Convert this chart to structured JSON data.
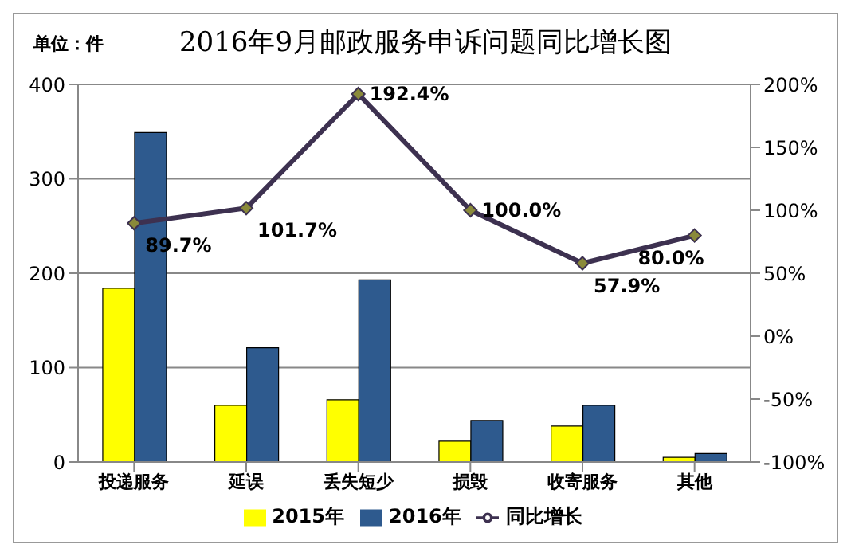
{
  "chart_data": {
    "type": "bar",
    "title": "2016年9月邮政服务申诉问题同比增长图",
    "annotations": [
      "单位：件"
    ],
    "categories": [
      "投递服务",
      "延误",
      "丢失短少",
      "损毁",
      "收寄服务",
      "其他"
    ],
    "series": [
      {
        "name": "2015年",
        "color": "#ffff00",
        "values": [
          184,
          60,
          66,
          22,
          38,
          5
        ]
      },
      {
        "name": "2016年",
        "color": "#2e5a8e",
        "values": [
          349,
          121,
          193,
          44,
          60,
          9
        ]
      },
      {
        "name": "同比增长",
        "type": "line",
        "axis": "y2",
        "color": "#3d3150",
        "marker": "diamond",
        "values": [
          89.7,
          101.7,
          192.4,
          100.0,
          57.9,
          80.0
        ],
        "value_labels": [
          "89.7%",
          "101.7%",
          "192.4%",
          "100.0%",
          "57.9%",
          "80.0%"
        ]
      }
    ],
    "ylim": [
      0,
      400
    ],
    "yticks": [
      0,
      100,
      200,
      300,
      400
    ],
    "y2lim": [
      -100,
      200
    ],
    "y2ticks": [
      {
        "value": -100,
        "label": "-100%"
      },
      {
        "value": -50,
        "label": "-50%"
      },
      {
        "value": 0,
        "label": "0%"
      },
      {
        "value": 50,
        "label": "50%"
      },
      {
        "value": 100,
        "label": "100%"
      },
      {
        "value": 150,
        "label": "150%"
      },
      {
        "value": 200,
        "label": "200%"
      }
    ],
    "grid": "y",
    "legend": "bottom"
  }
}
